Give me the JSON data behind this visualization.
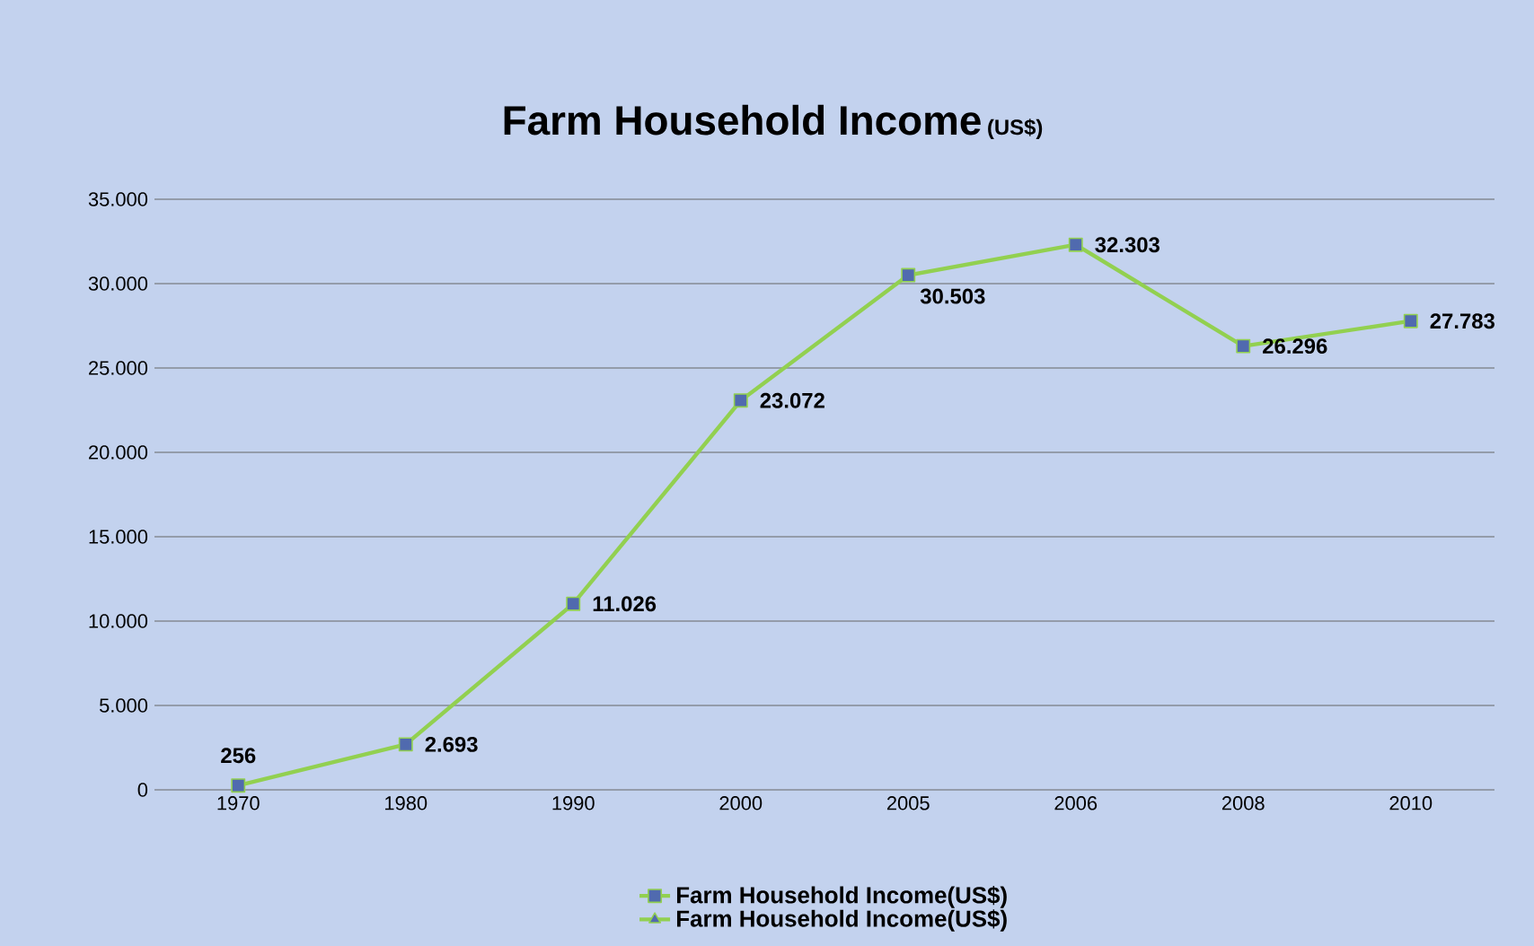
{
  "chart_data": {
    "type": "line",
    "title": "Farm Household Income",
    "subtitle": "(US$)",
    "categories": [
      "1970",
      "1980",
      "1990",
      "2000",
      "2005",
      "2006",
      "2008",
      "2010"
    ],
    "series": [
      {
        "name": "Farm Household Income(US$)",
        "color": "#92d050",
        "marker": "square",
        "values": [
          256,
          2693,
          11026,
          23072,
          30503,
          32303,
          26296,
          27783
        ],
        "value_labels": [
          "256",
          "2.693",
          "11.026",
          "23.072",
          "30.503",
          "32.303",
          "26.296",
          "27.783"
        ]
      },
      {
        "name": "Farm Household Income(US$)",
        "color": "#92d050",
        "marker": "triangle",
        "values": [
          null,
          null,
          null,
          null,
          null,
          null,
          null,
          null
        ]
      }
    ],
    "ylim": [
      0,
      35000
    ],
    "yticks": [
      0,
      {
        "value": 5000,
        "label": "5.000"
      },
      {
        "value": 10000,
        "label": "10.000"
      },
      {
        "value": 15000,
        "label": "15.000"
      },
      {
        "value": 20000,
        "label": "20.000"
      },
      {
        "value": 25000,
        "label": "25.000"
      },
      {
        "value": 30000,
        "label": "30.000"
      },
      {
        "value": 35000,
        "label": "35.000"
      }
    ],
    "grid": "y",
    "legend": "bottom"
  }
}
